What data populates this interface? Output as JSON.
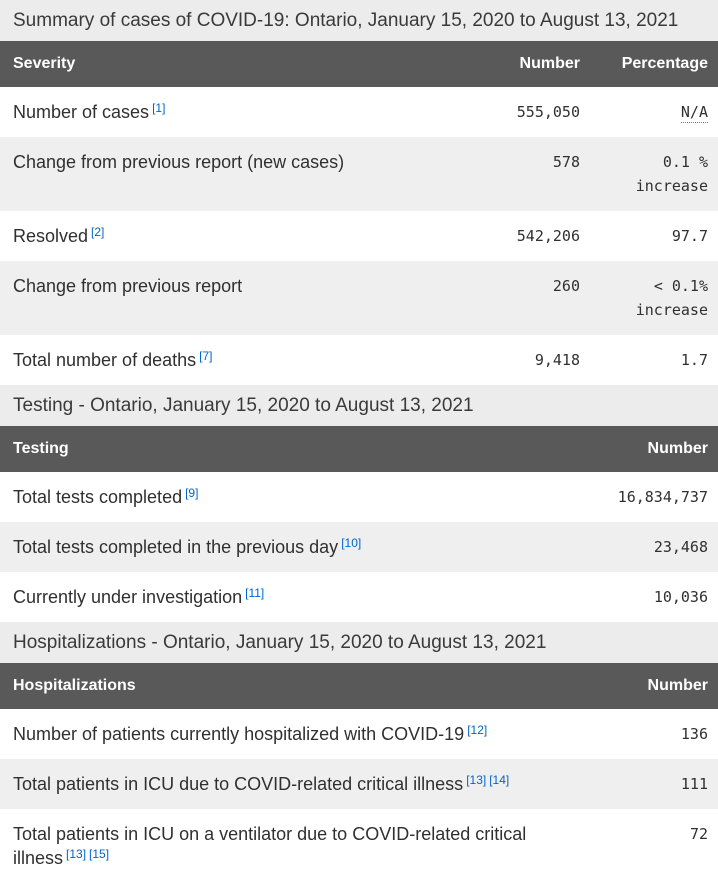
{
  "colors": {
    "header_bg": "#595959",
    "header_text": "#ffffff",
    "caption_bg": "#ececec",
    "zebra_bg": "#efefef",
    "body_text": "#303030",
    "footnote_link": "#0066cc"
  },
  "tables": [
    {
      "caption": "Summary of cases of COVID-19: Ontario, January 15, 2020 to August 13, 2021",
      "columns": [
        "Severity",
        "Number",
        "Percentage"
      ],
      "rows": [
        {
          "label": "Number of cases",
          "refs": [
            "[1]"
          ],
          "number": "555,050",
          "percentage": "N/A"
        },
        {
          "label": "Change from previous report (new cases)",
          "number": "578",
          "percentage": "0.1 %",
          "percentage_line2": "increase"
        },
        {
          "label": "Resolved",
          "refs": [
            "[2]"
          ],
          "number": "542,206",
          "percentage": "97.7"
        },
        {
          "label": "Change from previous report",
          "number": "260",
          "percentage": "< 0.1%",
          "percentage_line2": "increase"
        },
        {
          "label": "Total number of deaths",
          "refs": [
            "[7]"
          ],
          "number": "9,418",
          "percentage": "1.7"
        }
      ]
    },
    {
      "caption": "Testing - Ontario, January 15, 2020 to August 13, 2021",
      "columns": [
        "Testing",
        "Number"
      ],
      "rows": [
        {
          "label": "Total tests completed",
          "refs": [
            "[9]"
          ],
          "number": "16,834,737"
        },
        {
          "label": "Total tests completed in the previous day",
          "refs": [
            "[10]"
          ],
          "number": "23,468"
        },
        {
          "label": "Currently under investigation",
          "refs": [
            "[11]"
          ],
          "number": "10,036"
        }
      ]
    },
    {
      "caption": "Hospitalizations - Ontario, January 15, 2020 to August 13, 2021",
      "columns": [
        "Hospitalizations",
        "Number"
      ],
      "rows": [
        {
          "label": "Number of patients currently hospitalized with COVID-19",
          "refs": [
            "[12]"
          ],
          "number": "136"
        },
        {
          "label": "Total patients in ICU due to COVID-related critical illness",
          "refs": [
            "[13]",
            "[14]"
          ],
          "number": "111"
        },
        {
          "label": "Total patients in ICU on a ventilator due to COVID-related critical illness",
          "refs": [
            "[13]",
            "[15]"
          ],
          "number": "72"
        }
      ]
    }
  ]
}
